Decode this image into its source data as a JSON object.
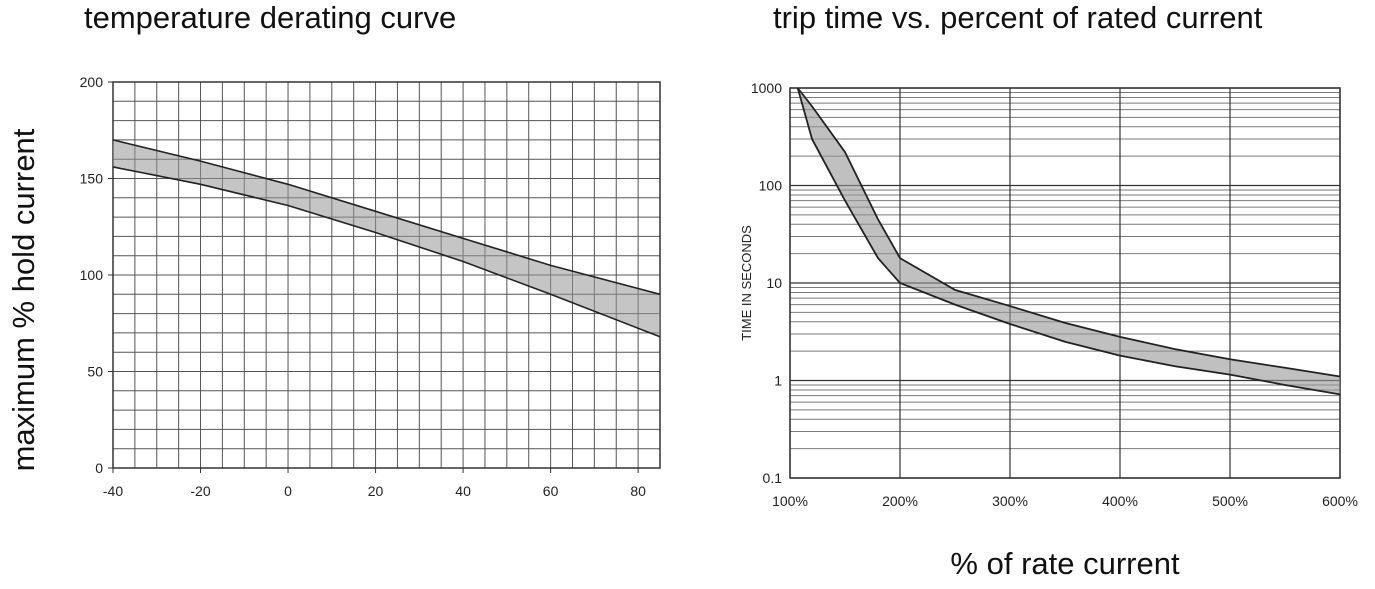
{
  "chart_data": [
    {
      "type": "area",
      "title": "temperature derating curve",
      "xlabel": "",
      "ylabel": "maximum % hold current",
      "xlim": [
        -40,
        85
      ],
      "ylim": [
        0,
        200
      ],
      "x_ticks": [
        -40,
        -20,
        0,
        20,
        40,
        60,
        80
      ],
      "y_ticks": [
        0,
        50,
        100,
        150,
        200
      ],
      "grid": true,
      "band": {
        "x": [
          -40,
          -20,
          0,
          20,
          40,
          60,
          85
        ],
        "upper": [
          170,
          159,
          147,
          133,
          119,
          105,
          90
        ],
        "lower": [
          156,
          147,
          136,
          122,
          107,
          90,
          68
        ]
      }
    },
    {
      "type": "area",
      "title": "trip time vs. percent of rated current",
      "xlabel": "% of rate current",
      "ylabel": "TIME IN SECONDS",
      "xlim": [
        100,
        600
      ],
      "ylim": [
        0.1,
        1000
      ],
      "y_scale": "log",
      "x_ticks": [
        "100%",
        "200%",
        "300%",
        "400%",
        "500%",
        "600%"
      ],
      "y_ticks": [
        "0.1",
        "1",
        "10",
        "100",
        "1000"
      ],
      "grid": true,
      "band": {
        "x": [
          107,
          120,
          150,
          180,
          200,
          250,
          300,
          350,
          400,
          450,
          500,
          550,
          600
        ],
        "upper": [
          1000,
          650,
          220,
          45,
          18,
          8.5,
          5.8,
          3.9,
          2.8,
          2.1,
          1.65,
          1.35,
          1.1
        ],
        "lower": [
          1000,
          300,
          70,
          18,
          10,
          6,
          3.8,
          2.5,
          1.8,
          1.4,
          1.15,
          0.9,
          0.72
        ]
      }
    }
  ]
}
